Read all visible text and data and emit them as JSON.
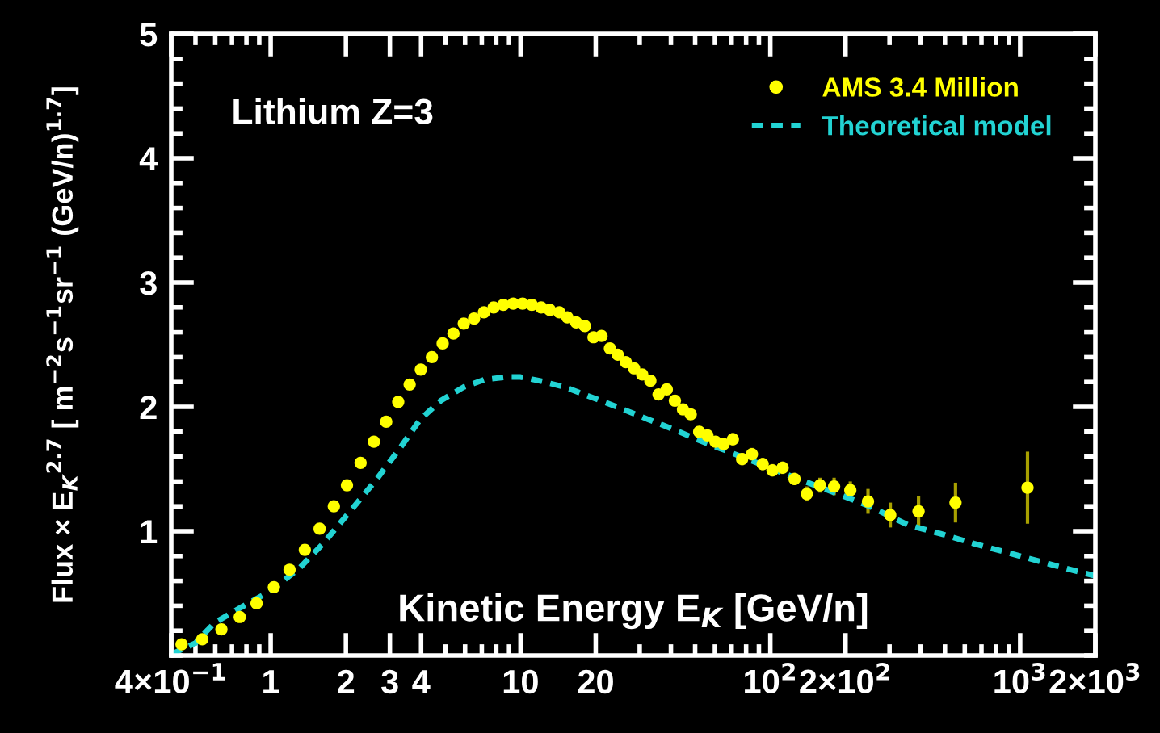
{
  "chart_data": {
    "type": "scatter",
    "xlabel": "Kinetic Energy E$_{K}$ [GeV/n]",
    "ylabel": "Flux × E$_{K}$$^{2.7}$ [ m$^{−2}$s$^{−1}$sr$^{−1}$ (GeV/n)$^{1.7}$]",
    "annotations": [
      "Lithium Z=3"
    ],
    "log": "x",
    "xlim": [
      0.4,
      2000
    ],
    "ylim": [
      0,
      5
    ],
    "xticks": [
      {
        "value": 0.4,
        "label": "4×10$^{−1}$"
      },
      1,
      2,
      3,
      4,
      10,
      20,
      {
        "value": 100,
        "label": "10$^{2}$"
      },
      {
        "value": 200,
        "label": "2×10$^{2}$"
      },
      {
        "value": 1000,
        "label": "10$^{3}$"
      },
      {
        "value": 2000,
        "label": "2×10$^{3}$"
      }
    ],
    "yticks": [
      1,
      2,
      3,
      4,
      5
    ],
    "grid": false,
    "legend": "top right",
    "series": [
      {
        "name": "AMS 3.4 Million",
        "marker": "circle",
        "color": "#ffff00",
        "x": [
          0.44,
          0.532,
          0.635,
          0.752,
          0.878,
          1.03,
          1.19,
          1.37,
          1.57,
          1.79,
          2.02,
          2.29,
          2.59,
          2.9,
          3.24,
          3.6,
          3.99,
          4.42,
          4.88,
          5.39,
          5.93,
          6.52,
          7.14,
          7.81,
          8.54,
          9.35,
          10.2,
          11.1,
          12.1,
          13.1,
          14.3,
          15.4,
          16.7,
          18.1,
          19.6,
          21.1,
          22.8,
          24.5,
          26.4,
          28.5,
          30.7,
          33.1,
          35.7,
          38.5,
          41.5,
          44.7,
          48,
          51.9,
          56,
          60.3,
          65,
          70.8,
          77.1,
          84.4,
          93.2,
          102,
          112,
          125,
          140,
          158,
          180,
          209,
          246,
          302,
          392,
          551,
          1070
        ],
        "values": [
          0.09,
          0.13,
          0.21,
          0.31,
          0.42,
          0.55,
          0.69,
          0.85,
          1.02,
          1.2,
          1.37,
          1.55,
          1.72,
          1.88,
          2.04,
          2.18,
          2.3,
          2.4,
          2.51,
          2.59,
          2.67,
          2.71,
          2.76,
          2.8,
          2.82,
          2.83,
          2.83,
          2.82,
          2.8,
          2.78,
          2.76,
          2.72,
          2.68,
          2.65,
          2.56,
          2.57,
          2.47,
          2.42,
          2.36,
          2.31,
          2.26,
          2.21,
          2.1,
          2.14,
          2.05,
          1.98,
          1.94,
          1.8,
          1.77,
          1.72,
          1.7,
          1.74,
          1.58,
          1.62,
          1.54,
          1.49,
          1.51,
          1.42,
          1.3,
          1.37,
          1.36,
          1.33,
          1.24,
          1.13,
          1.16,
          1.23,
          1.35
        ],
        "errors": [
          null,
          null,
          null,
          null,
          null,
          null,
          null,
          null,
          null,
          null,
          null,
          null,
          0.03,
          0.03,
          0.03,
          0.03,
          0.03,
          0.04,
          0.04,
          0.04,
          0.04,
          0.04,
          0.04,
          0.04,
          0.04,
          0.04,
          0.04,
          0.04,
          0.04,
          0.04,
          0.04,
          0.04,
          0.04,
          0.04,
          0.04,
          0.04,
          0.04,
          0.04,
          0.04,
          0.04,
          0.04,
          0.04,
          0.04,
          0.04,
          0.04,
          0.04,
          0.04,
          0.04,
          0.04,
          0.04,
          0.04,
          0.05,
          0.05,
          0.05,
          0.05,
          0.05,
          0.05,
          0.05,
          0.06,
          0.06,
          0.07,
          0.07,
          0.1,
          0.1,
          0.12,
          0.16,
          0.29
        ]
      },
      {
        "name": "Theoretical model",
        "type": "line",
        "line_style": "dashed",
        "marker": "none",
        "color": "#22d3d3",
        "x": [
          0.4,
          0.5,
          0.594,
          0.75,
          0.98,
          1.3,
          1.62,
          2.1,
          2.66,
          3.3,
          3.97,
          4.8,
          5.93,
          7.2,
          8.84,
          10,
          11.9,
          15,
          19.7,
          25,
          32.4,
          42,
          53.5,
          70,
          88.3,
          115,
          146,
          186,
          250,
          355,
          480,
          653,
          1000,
          1400,
          2000
        ],
        "values": [
          0.01,
          0.1,
          0.26,
          0.38,
          0.51,
          0.7,
          0.9,
          1.17,
          1.42,
          1.67,
          1.9,
          2.05,
          2.16,
          2.22,
          2.24,
          2.24,
          2.21,
          2.16,
          2.07,
          1.99,
          1.9,
          1.81,
          1.72,
          1.63,
          1.55,
          1.46,
          1.38,
          1.3,
          1.2,
          1.05,
          0.98,
          0.9,
          0.8,
          0.72,
          0.64
        ]
      }
    ]
  }
}
